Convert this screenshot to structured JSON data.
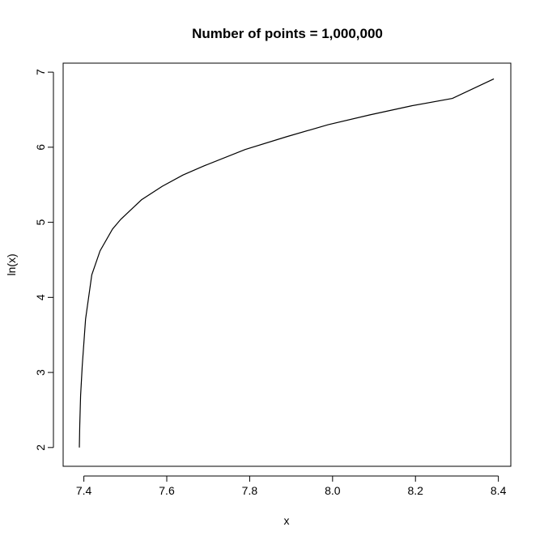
{
  "chart_data": {
    "type": "line",
    "title": "Number of points = 1,000,000",
    "xlabel": "x",
    "ylabel": "ln(x)",
    "xlim": [
      7.35,
      8.43
    ],
    "ylim": [
      1.75,
      7.12
    ],
    "x_ticks": [
      7.4,
      7.6,
      7.8,
      8.0,
      8.2,
      8.4
    ],
    "x_tick_labels": [
      "7.4",
      "7.6",
      "7.8",
      "8.0",
      "8.2",
      "8.4"
    ],
    "y_ticks": [
      2,
      3,
      4,
      5,
      6,
      7
    ],
    "y_tick_labels": [
      "2",
      "3",
      "4",
      "5",
      "6",
      "7"
    ],
    "grid": false,
    "line_color": "#000000",
    "series": [
      {
        "x": [
          7.3891,
          7.3901,
          7.3921,
          7.3961,
          7.4041,
          7.4191,
          7.4391,
          7.4691,
          7.4891,
          7.5391,
          7.5891,
          7.6391,
          7.6891,
          7.7891,
          7.8891,
          7.9891,
          8.0891,
          8.1891,
          8.2891,
          8.3891
        ],
        "y": [
          2.0,
          2.3,
          2.69,
          3.09,
          3.71,
          4.3,
          4.62,
          4.91,
          5.04,
          5.3,
          5.48,
          5.63,
          5.75,
          5.97,
          6.14,
          6.3,
          6.43,
          6.55,
          6.65,
          6.91
        ]
      }
    ]
  }
}
